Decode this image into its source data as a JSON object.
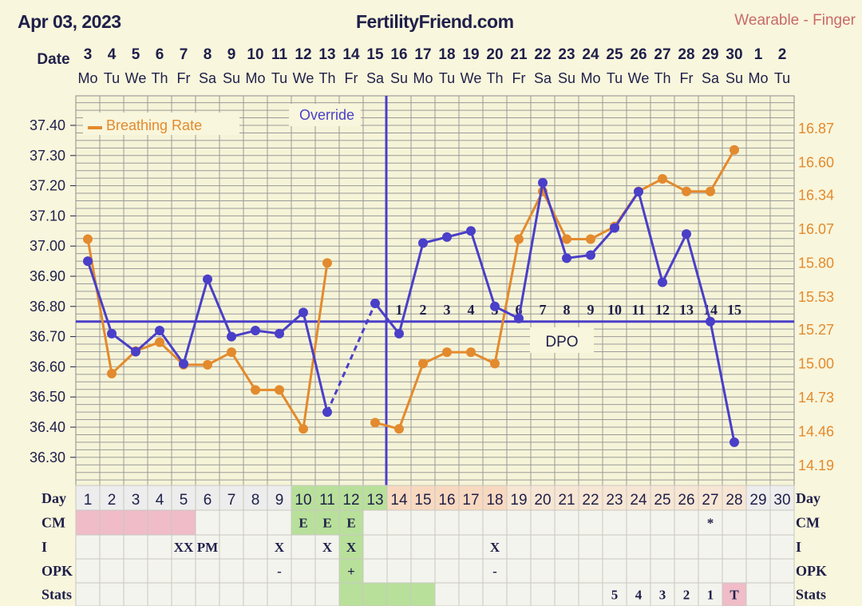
{
  "header": {
    "date": "Apr 03, 2023",
    "site": "FertilityFriend.com",
    "source": "Wearable - Finger",
    "date_row_label": "Date"
  },
  "chart_data": {
    "type": "line",
    "dates": [
      "3",
      "4",
      "5",
      "6",
      "7",
      "8",
      "9",
      "10",
      "11",
      "12",
      "13",
      "14",
      "15",
      "16",
      "17",
      "18",
      "19",
      "20",
      "21",
      "22",
      "23",
      "24",
      "25",
      "26",
      "27",
      "28",
      "29",
      "30",
      "1",
      "2"
    ],
    "weekdays": [
      "Mo",
      "Tu",
      "We",
      "Th",
      "Fr",
      "Sa",
      "Su",
      "Mo",
      "Tu",
      "We",
      "Th",
      "Fr",
      "Sa",
      "Su",
      "Mo",
      "Tu",
      "We",
      "Th",
      "Fr",
      "Sa",
      "Su",
      "Mo",
      "Tu",
      "We",
      "Th",
      "Fr",
      "Sa",
      "Su",
      "Mo",
      "Tu"
    ],
    "left_axis": {
      "min": 36.2,
      "max": 37.5,
      "ticks": [
        "37.40",
        "37.30",
        "37.20",
        "37.10",
        "37.00",
        "36.90",
        "36.80",
        "36.70",
        "36.60",
        "36.50",
        "36.40",
        "36.30"
      ]
    },
    "right_axis": {
      "min": 14.06,
      "max": 17.05,
      "ticks": [
        "16.87",
        "16.60",
        "16.34",
        "16.07",
        "15.80",
        "15.53",
        "15.27",
        "15.00",
        "14.73",
        "14.46",
        "14.19"
      ]
    },
    "temperature": {
      "color": "#4a3fc8",
      "values": [
        36.95,
        36.71,
        36.65,
        36.72,
        36.61,
        36.89,
        36.7,
        36.72,
        36.71,
        36.78,
        36.45,
        null,
        36.81,
        36.71,
        37.01,
        37.03,
        37.05,
        36.8,
        36.76,
        37.21,
        36.96,
        36.97,
        37.06,
        37.18,
        36.88,
        37.04,
        36.75,
        36.35,
        null,
        null
      ],
      "dashed_segment": [
        11,
        13
      ]
    },
    "breathing_rate": {
      "name": "Breathing Rate",
      "color": "#e38a2e",
      "values": [
        15.99,
        14.92,
        15.1,
        15.17,
        14.99,
        14.99,
        15.09,
        14.79,
        14.79,
        14.48,
        15.8,
        null,
        14.53,
        14.48,
        15.0,
        15.09,
        15.09,
        15.0,
        15.99,
        16.37,
        15.99,
        15.99,
        16.09,
        16.37,
        16.47,
        16.37,
        16.37,
        16.7,
        null,
        null
      ]
    },
    "coverline": 36.75,
    "ovulation_day": 13,
    "override_label": "Override",
    "dpo_label": "DPO",
    "dpo_numbers": [
      "1",
      "2",
      "3",
      "4",
      "5",
      "6",
      "7",
      "8",
      "9",
      "10",
      "11",
      "12",
      "13",
      "14",
      "15"
    ],
    "legend_position": "top-left"
  },
  "table": {
    "day_label": "Day",
    "days": [
      "1",
      "2",
      "3",
      "4",
      "5",
      "6",
      "7",
      "8",
      "9",
      "10",
      "11",
      "12",
      "13",
      "14",
      "15",
      "16",
      "17",
      "18",
      "19",
      "20",
      "21",
      "22",
      "23",
      "24",
      "25",
      "26",
      "27",
      "28",
      "29",
      "30"
    ],
    "rows": [
      {
        "label": "CM",
        "cells": {
          "10": "E",
          "11": "E",
          "12": "E",
          "27": "*"
        }
      },
      {
        "label": "I",
        "cells": {
          "5": "XX",
          "6": "PM",
          "9": "X",
          "11": "X",
          "12": "X",
          "18": "X"
        }
      },
      {
        "label": "OPK",
        "cells": {
          "9": "-",
          "12": "+",
          "18": "-"
        }
      },
      {
        "label": "Stats",
        "cells": {
          "23": "5",
          "24": "4",
          "25": "3",
          "26": "2",
          "27": "1",
          "28": "T"
        }
      }
    ]
  }
}
